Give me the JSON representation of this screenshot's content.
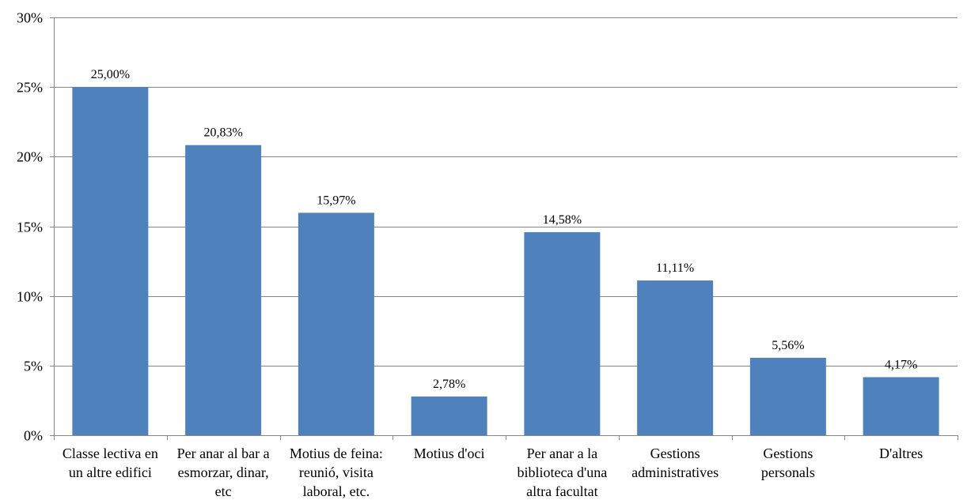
{
  "chart_data": {
    "type": "bar",
    "categories": [
      [
        "Classe lectiva en",
        "un altre edifici"
      ],
      [
        "Per anar al bar a",
        "esmorzar, dinar,",
        "etc"
      ],
      [
        "Motius de feina:",
        "reunió, visita",
        "laboral, etc."
      ],
      [
        "Motius d'oci"
      ],
      [
        "Per anar a la",
        "biblioteca d'una",
        "altra facultat"
      ],
      [
        "Gestions",
        "administratives"
      ],
      [
        "Gestions",
        "personals"
      ],
      [
        "D'altres"
      ]
    ],
    "values": [
      25.0,
      20.83,
      15.97,
      2.78,
      14.58,
      11.11,
      5.56,
      4.17
    ],
    "data_labels": [
      "25,00%",
      "20,83%",
      "15,97%",
      "2,78%",
      "14,58%",
      "11,11%",
      "5,56%",
      "4,17%"
    ],
    "ylim": [
      0,
      30
    ],
    "yticks": [
      0,
      5,
      10,
      15,
      20,
      25,
      30
    ],
    "ytick_labels": [
      "0%",
      "5%",
      "10%",
      "15%",
      "20%",
      "25%",
      "30%"
    ],
    "grid": true,
    "bar_color": "#4F81BD",
    "grid_color": "#868686",
    "title": "",
    "xlabel": "",
    "ylabel": ""
  }
}
